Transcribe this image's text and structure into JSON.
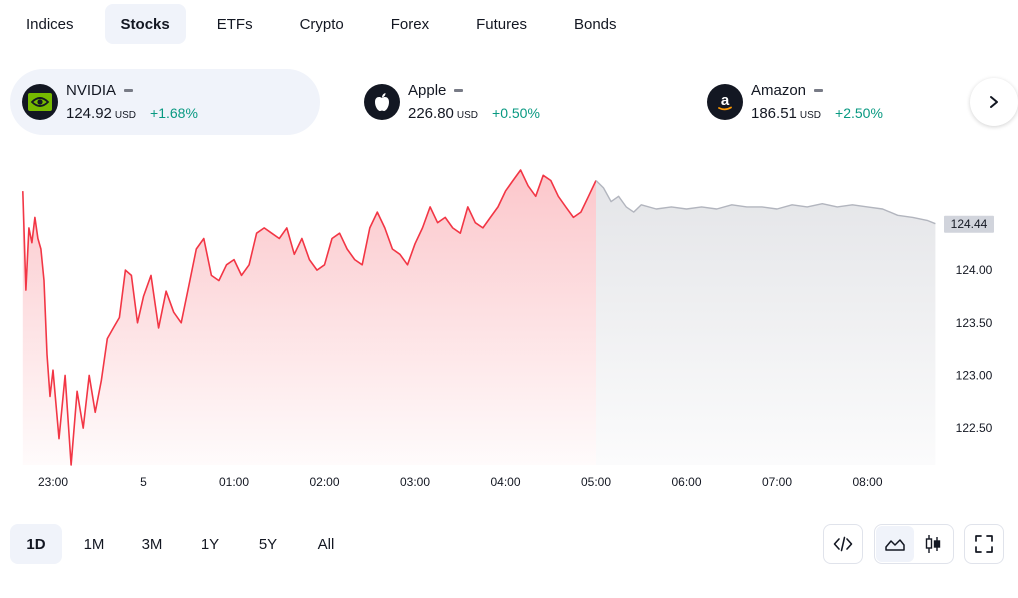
{
  "tabs": [
    {
      "label": "Indices"
    },
    {
      "label": "Stocks",
      "active": true
    },
    {
      "label": "ETFs"
    },
    {
      "label": "Crypto"
    },
    {
      "label": "Forex"
    },
    {
      "label": "Futures"
    },
    {
      "label": "Bonds"
    }
  ],
  "tickers": [
    {
      "name": "NVIDIA",
      "price": "124.92",
      "currency": "USD",
      "change": "+1.68%",
      "logo_icon": "nvidia-logo-icon",
      "selected": true
    },
    {
      "name": "Apple",
      "price": "226.80",
      "currency": "USD",
      "change": "+0.50%",
      "logo_icon": "apple-logo-icon"
    },
    {
      "name": "Amazon",
      "price": "186.51",
      "currency": "USD",
      "change": "+2.50%",
      "logo_icon": "amazon-logo-icon"
    }
  ],
  "ranges": [
    {
      "label": "1D",
      "active": true
    },
    {
      "label": "1M"
    },
    {
      "label": "3M"
    },
    {
      "label": "1Y"
    },
    {
      "label": "5Y"
    },
    {
      "label": "All"
    }
  ],
  "tools": {
    "embed_icon": "code-icon",
    "area_icon": "area-chart-icon",
    "candle_icon": "candlestick-icon",
    "fullscreen_icon": "fullscreen-icon"
  },
  "colors": {
    "up": "#089981",
    "line_main": "#f23645",
    "line_ext": "#b2b5be",
    "accent_bg": "#f0f3fa"
  },
  "chart_data": {
    "type": "area",
    "x_ticks": [
      "23:00",
      "5",
      "01:00",
      "02:00",
      "03:00",
      "04:00",
      "05:00",
      "06:00",
      "07:00",
      "08:00"
    ],
    "y_ticks": [
      124.0,
      123.5,
      123.0,
      122.5
    ],
    "y_tick_labels": [
      "124.00",
      "123.50",
      "123.00",
      "122.50"
    ],
    "ylim": [
      122.15,
      124.95
    ],
    "last_price_label": "124.44",
    "last_price": 124.44,
    "series": [
      {
        "segment": "regular",
        "x": [
          "22:40",
          "22:42",
          "22:44",
          "22:46",
          "22:48",
          "22:50",
          "22:52",
          "22:54",
          "22:56",
          "22:58",
          "23:00",
          "23:04",
          "23:08",
          "23:12",
          "23:16",
          "23:20",
          "23:24",
          "23:28",
          "23:32",
          "23:36",
          "23:40",
          "23:44",
          "23:48",
          "23:52",
          "23:56",
          "00:00",
          "00:05",
          "00:10",
          "00:15",
          "00:20",
          "00:25",
          "00:30",
          "00:35",
          "00:40",
          "00:45",
          "00:50",
          "00:55",
          "01:00",
          "01:05",
          "01:10",
          "01:15",
          "01:20",
          "01:25",
          "01:30",
          "01:35",
          "01:40",
          "01:45",
          "01:50",
          "01:55",
          "02:00",
          "02:05",
          "02:10",
          "02:15",
          "02:20",
          "02:25",
          "02:30",
          "02:35",
          "02:40",
          "02:45",
          "02:50",
          "02:55",
          "03:00",
          "03:05",
          "03:10",
          "03:15",
          "03:20",
          "03:25",
          "03:30",
          "03:35",
          "03:40",
          "03:45",
          "03:50",
          "03:55",
          "04:00",
          "04:05",
          "04:10",
          "04:15",
          "04:20",
          "04:25",
          "04:30",
          "04:35",
          "04:40",
          "04:45",
          "04:50",
          "04:55",
          "05:00"
        ],
        "y": [
          124.75,
          123.81,
          124.4,
          124.26,
          124.5,
          124.3,
          124.2,
          123.9,
          123.2,
          122.8,
          123.05,
          122.4,
          123.0,
          122.15,
          122.85,
          122.5,
          123.0,
          122.65,
          122.95,
          123.35,
          123.45,
          123.55,
          124.0,
          123.95,
          123.5,
          123.75,
          123.95,
          123.45,
          123.8,
          123.6,
          123.5,
          123.85,
          124.2,
          124.3,
          123.95,
          123.9,
          124.05,
          124.1,
          123.95,
          124.05,
          124.35,
          124.4,
          124.35,
          124.3,
          124.4,
          124.15,
          124.3,
          124.1,
          124.0,
          124.05,
          124.3,
          124.35,
          124.2,
          124.1,
          124.05,
          124.4,
          124.55,
          124.4,
          124.2,
          124.15,
          124.05,
          124.25,
          124.4,
          124.6,
          124.45,
          124.5,
          124.4,
          124.35,
          124.6,
          124.45,
          124.4,
          124.5,
          124.6,
          124.75,
          124.85,
          124.95,
          124.8,
          124.7,
          124.9,
          124.85,
          124.7,
          124.6,
          124.5,
          124.55,
          124.7,
          124.85
        ]
      },
      {
        "segment": "extended",
        "x": [
          "05:00",
          "05:05",
          "05:10",
          "05:15",
          "05:20",
          "05:25",
          "05:30",
          "05:40",
          "05:50",
          "06:00",
          "06:10",
          "06:20",
          "06:30",
          "06:40",
          "06:50",
          "07:00",
          "07:10",
          "07:20",
          "07:30",
          "07:40",
          "07:50",
          "08:00",
          "08:10",
          "08:20",
          "08:30",
          "08:40",
          "08:45"
        ],
        "y": [
          124.85,
          124.78,
          124.65,
          124.7,
          124.6,
          124.55,
          124.62,
          124.58,
          124.6,
          124.58,
          124.6,
          124.58,
          124.62,
          124.6,
          124.6,
          124.58,
          124.62,
          124.6,
          124.63,
          124.6,
          124.62,
          124.6,
          124.58,
          124.52,
          124.5,
          124.47,
          124.44
        ]
      }
    ]
  }
}
